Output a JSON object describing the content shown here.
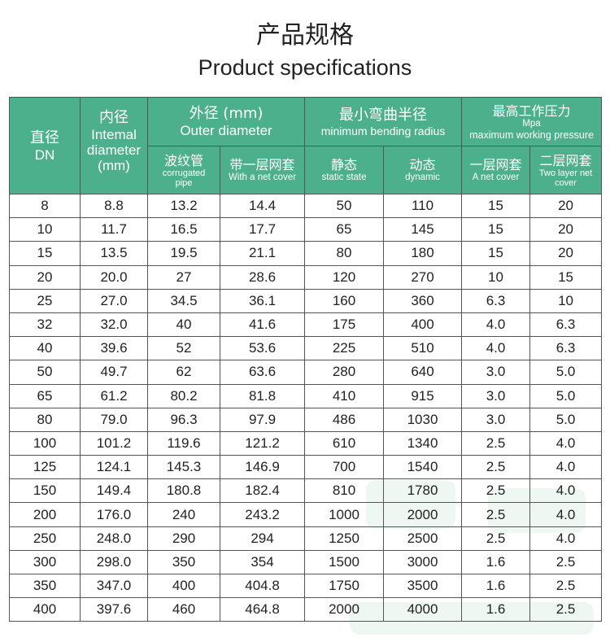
{
  "title_zh": "产品规格",
  "title_en": "Product specifications",
  "header": {
    "dn": {
      "zh": "直径",
      "en": "DN"
    },
    "inner": {
      "zh": "内径",
      "en1": "Intemal",
      "en2": "diameter",
      "unit": "(mm)"
    },
    "outer": {
      "zh": "外径 (mm)",
      "en": "Outer diameter",
      "sub1": {
        "zh": "波纹管",
        "en1": "corrugated",
        "en2": "pipe"
      },
      "sub2": {
        "zh": "带一层网套",
        "en": "With a net cover"
      }
    },
    "bend": {
      "zh": "最小弯曲半径",
      "en": "minimum bending radius",
      "sub1": {
        "zh": "静态",
        "en": "static state"
      },
      "sub2": {
        "zh": "动态",
        "en": "dynamic"
      }
    },
    "pressure": {
      "zh": "最高工作压力",
      "unit": "Mpa",
      "en": "maximum working pressure",
      "sub1": {
        "zh": "一层网套",
        "en": "A net cover"
      },
      "sub2": {
        "zh": "二层网套",
        "en1": "Two layer net",
        "en2": "cover"
      }
    }
  },
  "rows": [
    [
      "8",
      "8.8",
      "13.2",
      "14.4",
      "50",
      "110",
      "15",
      "20"
    ],
    [
      "10",
      "11.7",
      "16.5",
      "17.7",
      "65",
      "145",
      "15",
      "20"
    ],
    [
      "15",
      "13.5",
      "19.5",
      "21.1",
      "80",
      "180",
      "15",
      "20"
    ],
    [
      "20",
      "20.0",
      "27",
      "28.6",
      "120",
      "270",
      "10",
      "15"
    ],
    [
      "25",
      "27.0",
      "34.5",
      "36.1",
      "160",
      "360",
      "6.3",
      "10"
    ],
    [
      "32",
      "32.0",
      "40",
      "41.6",
      "175",
      "400",
      "4.0",
      "6.3"
    ],
    [
      "40",
      "39.6",
      "52",
      "53.6",
      "225",
      "510",
      "4.0",
      "6.3"
    ],
    [
      "50",
      "49.7",
      "62",
      "63.6",
      "280",
      "640",
      "3.0",
      "5.0"
    ],
    [
      "65",
      "61.2",
      "80.2",
      "81.8",
      "410",
      "915",
      "3.0",
      "5.0"
    ],
    [
      "80",
      "79.0",
      "96.3",
      "97.9",
      "486",
      "1030",
      "3.0",
      "5.0"
    ],
    [
      "100",
      "101.2",
      "119.6",
      "121.2",
      "610",
      "1340",
      "2.5",
      "4.0"
    ],
    [
      "125",
      "124.1",
      "145.3",
      "146.9",
      "700",
      "1540",
      "2.5",
      "4.0"
    ],
    [
      "150",
      "149.4",
      "180.8",
      "182.4",
      "810",
      "1780",
      "2.5",
      "4.0"
    ],
    [
      "200",
      "176.0",
      "240",
      "243.2",
      "1000",
      "2000",
      "2.5",
      "4.0"
    ],
    [
      "250",
      "248.0",
      "290",
      "294",
      "1250",
      "2500",
      "2.5",
      "4.0"
    ],
    [
      "300",
      "298.0",
      "350",
      "354",
      "1500",
      "3000",
      "1.6",
      "2.5"
    ],
    [
      "350",
      "347.0",
      "400",
      "404.8",
      "1750",
      "3500",
      "1.6",
      "2.5"
    ],
    [
      "400",
      "397.6",
      "460",
      "464.8",
      "2000",
      "4000",
      "1.6",
      "2.5"
    ]
  ],
  "colors": {
    "header_bg": "#4db08d",
    "header_text": "#ffffff",
    "border": "#555555",
    "watermark": "#eef7f2"
  }
}
